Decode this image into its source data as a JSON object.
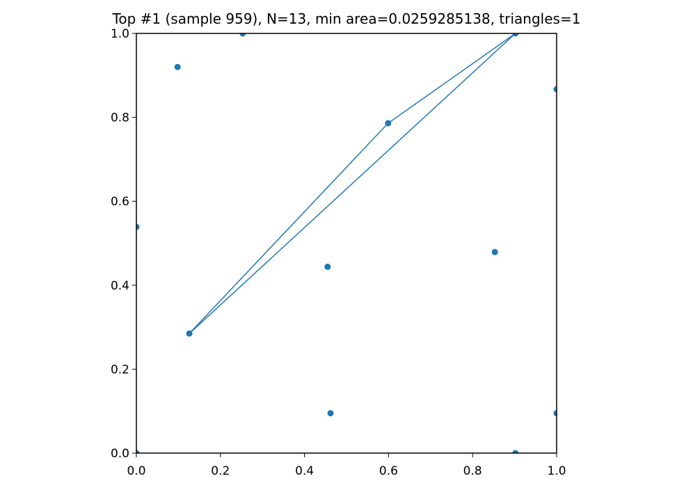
{
  "chart_data": {
    "type": "scatter",
    "title": "Top #1 (sample 959), N=13, min area=0.0259285138, triangles=1",
    "series": [
      {
        "type": "scatter",
        "color": "#1f77b4",
        "x": [
          0.253,
          0.098,
          0.902,
          1.0,
          0.599,
          0.0,
          0.455,
          0.853,
          0.126,
          0.462,
          1.0,
          0.902,
          0.0
        ],
        "y": [
          1.0,
          0.92,
          1.0,
          0.867,
          0.786,
          0.539,
          0.444,
          0.479,
          0.285,
          0.095,
          0.095,
          0.0,
          0.0
        ]
      },
      {
        "type": "line",
        "color": "#1f77b4",
        "x": [
          0.126,
          0.599,
          0.902,
          0.126
        ],
        "y": [
          0.285,
          0.786,
          1.0,
          0.285
        ]
      }
    ],
    "xlim": [
      0,
      1
    ],
    "ylim": [
      0,
      1
    ],
    "xticks": [
      {
        "value": 0,
        "label": "0.0"
      },
      0.2,
      0.4,
      0.6,
      0.8,
      {
        "value": 1,
        "label": "1.0"
      }
    ],
    "yticks": [
      {
        "value": 0,
        "label": "0.0"
      },
      0.2,
      0.4,
      0.6,
      0.8,
      {
        "value": 1,
        "label": "1.0"
      }
    ]
  }
}
